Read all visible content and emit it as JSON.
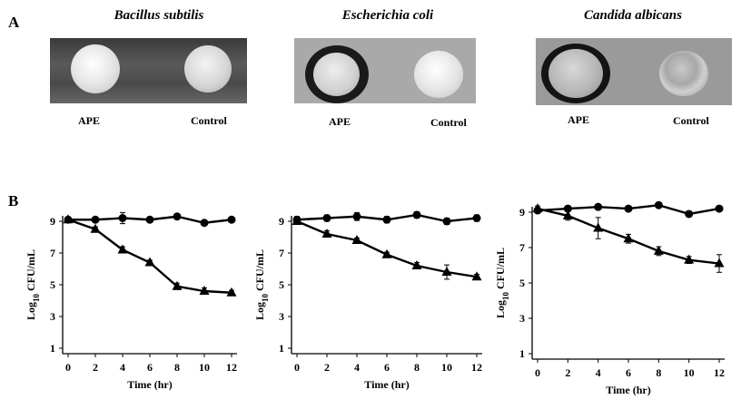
{
  "panel_a": {
    "letter": "A",
    "photos": [
      {
        "species": "Bacillus subtilis",
        "label_treated": "APE",
        "label_control": "Control"
      },
      {
        "species": "Escherichia coli",
        "label_treated": "APE",
        "label_control": "Control"
      },
      {
        "species": "Candida albicans",
        "label_treated": "APE",
        "label_control": "Control"
      }
    ]
  },
  "panel_b": {
    "letter": "B"
  },
  "chart_data": [
    {
      "type": "line",
      "title": "",
      "xlabel": "Time (hr)",
      "ylabel_main": "Log",
      "ylabel_sub": "10",
      "ylabel_rest": " CFU/mL",
      "xlim": [
        0,
        12
      ],
      "ylim": [
        1,
        9
      ],
      "xticks": [
        0,
        2,
        4,
        6,
        8,
        10,
        12
      ],
      "yticks": [
        1,
        3,
        5,
        7,
        9
      ],
      "x": [
        0,
        2,
        4,
        6,
        8,
        10,
        12
      ],
      "series": [
        {
          "marker": "circle",
          "values": [
            9.1,
            9.1,
            9.2,
            9.1,
            9.3,
            8.9,
            9.1
          ],
          "errors": [
            0.15,
            0.1,
            0.35,
            0.1,
            0.15,
            0.1,
            0.1
          ]
        },
        {
          "marker": "triangle",
          "values": [
            9.1,
            8.5,
            7.2,
            6.4,
            4.9,
            4.6,
            4.5
          ],
          "errors": [
            0.15,
            0.15,
            0.2,
            0.15,
            0.2,
            0.2,
            0.15
          ]
        }
      ]
    },
    {
      "type": "line",
      "title": "",
      "xlabel": "Time (hr)",
      "ylabel_main": "Log",
      "ylabel_sub": "10",
      "ylabel_rest": " CFU/mL",
      "xlim": [
        0,
        12
      ],
      "ylim": [
        1,
        9
      ],
      "xticks": [
        0,
        2,
        4,
        6,
        8,
        10,
        12
      ],
      "yticks": [
        1,
        3,
        5,
        7,
        9
      ],
      "x": [
        0,
        2,
        4,
        6,
        8,
        10,
        12
      ],
      "series": [
        {
          "marker": "circle",
          "values": [
            9.1,
            9.2,
            9.3,
            9.1,
            9.4,
            9.0,
            9.2
          ],
          "errors": [
            0.2,
            0.2,
            0.25,
            0.2,
            0.2,
            0.2,
            0.2
          ]
        },
        {
          "marker": "triangle",
          "values": [
            9.0,
            8.2,
            7.8,
            6.9,
            6.2,
            5.8,
            5.5
          ],
          "errors": [
            0.15,
            0.2,
            0.15,
            0.15,
            0.2,
            0.45,
            0.15
          ]
        }
      ]
    },
    {
      "type": "line",
      "title": "",
      "xlabel": "Time (hr)",
      "ylabel_main": "Log",
      "ylabel_sub": "10",
      "ylabel_rest": " CFU/mL",
      "xlim": [
        0,
        12
      ],
      "ylim": [
        1,
        9
      ],
      "xticks": [
        0,
        2,
        4,
        6,
        8,
        10,
        12
      ],
      "yticks": [
        1,
        3,
        5,
        7,
        9
      ],
      "x": [
        0,
        2,
        4,
        6,
        8,
        10,
        12
      ],
      "series": [
        {
          "marker": "circle",
          "values": [
            9.1,
            9.2,
            9.3,
            9.2,
            9.4,
            8.9,
            9.2
          ],
          "errors": [
            0.1,
            0.1,
            0.1,
            0.1,
            0.1,
            0.15,
            0.1
          ]
        },
        {
          "marker": "triangle",
          "values": [
            9.2,
            8.8,
            8.1,
            7.5,
            6.8,
            6.3,
            6.1
          ],
          "errors": [
            0.15,
            0.25,
            0.6,
            0.25,
            0.25,
            0.2,
            0.5
          ]
        }
      ]
    }
  ]
}
